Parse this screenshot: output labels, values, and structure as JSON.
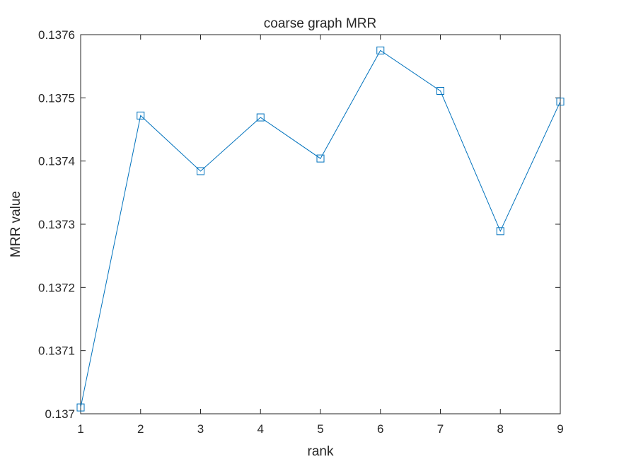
{
  "chart_data": {
    "type": "line",
    "title": "coarse graph MRR",
    "xlabel": "rank",
    "ylabel": "MRR value",
    "x": [
      1,
      2,
      3,
      4,
      5,
      6,
      7,
      8,
      9
    ],
    "xlim": [
      1,
      9
    ],
    "ylim": [
      0.137,
      0.1376
    ],
    "xticks": [
      "1",
      "2",
      "3",
      "4",
      "5",
      "6",
      "7",
      "8",
      "9"
    ],
    "yticks": [
      "0.137",
      "0.1371",
      "0.1372",
      "0.1373",
      "0.1374",
      "0.1375",
      "0.1376"
    ],
    "ytick_values": [
      0.137,
      0.1371,
      0.1372,
      0.1373,
      0.1374,
      0.1375,
      0.1376
    ],
    "grid": false,
    "series": [
      {
        "values": [
          0.13701,
          0.137472,
          0.137384,
          0.137469,
          0.137404,
          0.137575,
          0.137511,
          0.137289,
          0.137494
        ],
        "color": "#0072BD",
        "marker": "square"
      }
    ]
  }
}
